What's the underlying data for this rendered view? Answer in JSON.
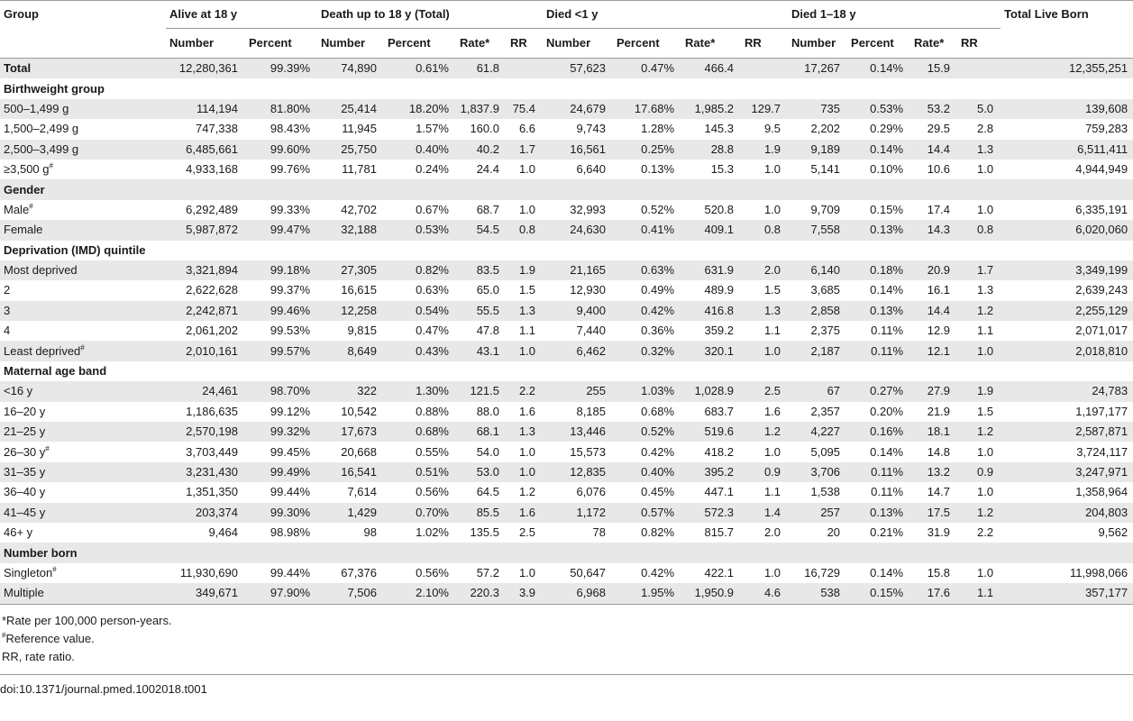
{
  "header": {
    "group": "Group",
    "alive": "Alive at 18 y",
    "death_total": "Death up to 18 y (Total)",
    "died_lt1": "Died <1 y",
    "died_1_18": "Died 1–18 y",
    "total_live_born": "Total Live Born",
    "number": "Number",
    "percent": "Percent",
    "rate": "Rate*",
    "rr": "RR"
  },
  "rows": [
    {
      "type": "data",
      "shade": true,
      "label": "Total",
      "ref": false,
      "cells": [
        "12,280,361",
        "99.39%",
        "74,890",
        "0.61%",
        "61.8",
        "",
        "57,623",
        "0.47%",
        "466.4",
        "",
        "17,267",
        "0.14%",
        "15.9",
        "",
        "12,355,251"
      ]
    },
    {
      "type": "section",
      "shade": false,
      "label": "Birthweight group"
    },
    {
      "type": "data",
      "shade": true,
      "label": "500–1,499 g",
      "ref": false,
      "cells": [
        "114,194",
        "81.80%",
        "25,414",
        "18.20%",
        "1,837.9",
        "75.4",
        "24,679",
        "17.68%",
        "1,985.2",
        "129.7",
        "735",
        "0.53%",
        "53.2",
        "5.0",
        "139,608"
      ]
    },
    {
      "type": "data",
      "shade": false,
      "label": "1,500–2,499 g",
      "ref": false,
      "cells": [
        "747,338",
        "98.43%",
        "11,945",
        "1.57%",
        "160.0",
        "6.6",
        "9,743",
        "1.28%",
        "145.3",
        "9.5",
        "2,202",
        "0.29%",
        "29.5",
        "2.8",
        "759,283"
      ]
    },
    {
      "type": "data",
      "shade": true,
      "label": "2,500–3,499 g",
      "ref": false,
      "cells": [
        "6,485,661",
        "99.60%",
        "25,750",
        "0.40%",
        "40.2",
        "1.7",
        "16,561",
        "0.25%",
        "28.8",
        "1.9",
        "9,189",
        "0.14%",
        "14.4",
        "1.3",
        "6,511,411"
      ]
    },
    {
      "type": "data",
      "shade": false,
      "label": "≥3,500 g",
      "ref": true,
      "cells": [
        "4,933,168",
        "99.76%",
        "11,781",
        "0.24%",
        "24.4",
        "1.0",
        "6,640",
        "0.13%",
        "15.3",
        "1.0",
        "5,141",
        "0.10%",
        "10.6",
        "1.0",
        "4,944,949"
      ]
    },
    {
      "type": "section",
      "shade": true,
      "label": "Gender"
    },
    {
      "type": "data",
      "shade": false,
      "label": "Male",
      "ref": true,
      "cells": [
        "6,292,489",
        "99.33%",
        "42,702",
        "0.67%",
        "68.7",
        "1.0",
        "32,993",
        "0.52%",
        "520.8",
        "1.0",
        "9,709",
        "0.15%",
        "17.4",
        "1.0",
        "6,335,191"
      ]
    },
    {
      "type": "data",
      "shade": true,
      "label": "Female",
      "ref": false,
      "cells": [
        "5,987,872",
        "99.47%",
        "32,188",
        "0.53%",
        "54.5",
        "0.8",
        "24,630",
        "0.41%",
        "409.1",
        "0.8",
        "7,558",
        "0.13%",
        "14.3",
        "0.8",
        "6,020,060"
      ]
    },
    {
      "type": "section",
      "shade": false,
      "label": "Deprivation (IMD) quintile"
    },
    {
      "type": "data",
      "shade": true,
      "label": "Most deprived",
      "ref": false,
      "cells": [
        "3,321,894",
        "99.18%",
        "27,305",
        "0.82%",
        "83.5",
        "1.9",
        "21,165",
        "0.63%",
        "631.9",
        "2.0",
        "6,140",
        "0.18%",
        "20.9",
        "1.7",
        "3,349,199"
      ]
    },
    {
      "type": "data",
      "shade": false,
      "label": "2",
      "ref": false,
      "cells": [
        "2,622,628",
        "99.37%",
        "16,615",
        "0.63%",
        "65.0",
        "1.5",
        "12,930",
        "0.49%",
        "489.9",
        "1.5",
        "3,685",
        "0.14%",
        "16.1",
        "1.3",
        "2,639,243"
      ]
    },
    {
      "type": "data",
      "shade": true,
      "label": "3",
      "ref": false,
      "cells": [
        "2,242,871",
        "99.46%",
        "12,258",
        "0.54%",
        "55.5",
        "1.3",
        "9,400",
        "0.42%",
        "416.8",
        "1.3",
        "2,858",
        "0.13%",
        "14.4",
        "1.2",
        "2,255,129"
      ]
    },
    {
      "type": "data",
      "shade": false,
      "label": "4",
      "ref": false,
      "cells": [
        "2,061,202",
        "99.53%",
        "9,815",
        "0.47%",
        "47.8",
        "1.1",
        "7,440",
        "0.36%",
        "359.2",
        "1.1",
        "2,375",
        "0.11%",
        "12.9",
        "1.1",
        "2,071,017"
      ]
    },
    {
      "type": "data",
      "shade": true,
      "label": "Least deprived",
      "ref": true,
      "cells": [
        "2,010,161",
        "99.57%",
        "8,649",
        "0.43%",
        "43.1",
        "1.0",
        "6,462",
        "0.32%",
        "320.1",
        "1.0",
        "2,187",
        "0.11%",
        "12.1",
        "1.0",
        "2,018,810"
      ]
    },
    {
      "type": "section",
      "shade": false,
      "label": "Maternal age band"
    },
    {
      "type": "data",
      "shade": true,
      "label": "<16 y",
      "ref": false,
      "cells": [
        "24,461",
        "98.70%",
        "322",
        "1.30%",
        "121.5",
        "2.2",
        "255",
        "1.03%",
        "1,028.9",
        "2.5",
        "67",
        "0.27%",
        "27.9",
        "1.9",
        "24,783"
      ]
    },
    {
      "type": "data",
      "shade": false,
      "label": "16–20 y",
      "ref": false,
      "cells": [
        "1,186,635",
        "99.12%",
        "10,542",
        "0.88%",
        "88.0",
        "1.6",
        "8,185",
        "0.68%",
        "683.7",
        "1.6",
        "2,357",
        "0.20%",
        "21.9",
        "1.5",
        "1,197,177"
      ]
    },
    {
      "type": "data",
      "shade": true,
      "label": "21–25 y",
      "ref": false,
      "cells": [
        "2,570,198",
        "99.32%",
        "17,673",
        "0.68%",
        "68.1",
        "1.3",
        "13,446",
        "0.52%",
        "519.6",
        "1.2",
        "4,227",
        "0.16%",
        "18.1",
        "1.2",
        "2,587,871"
      ]
    },
    {
      "type": "data",
      "shade": false,
      "label": "26–30 y",
      "ref": true,
      "cells": [
        "3,703,449",
        "99.45%",
        "20,668",
        "0.55%",
        "54.0",
        "1.0",
        "15,573",
        "0.42%",
        "418.2",
        "1.0",
        "5,095",
        "0.14%",
        "14.8",
        "1.0",
        "3,724,117"
      ]
    },
    {
      "type": "data",
      "shade": true,
      "label": "31–35 y",
      "ref": false,
      "cells": [
        "3,231,430",
        "99.49%",
        "16,541",
        "0.51%",
        "53.0",
        "1.0",
        "12,835",
        "0.40%",
        "395.2",
        "0.9",
        "3,706",
        "0.11%",
        "13.2",
        "0.9",
        "3,247,971"
      ]
    },
    {
      "type": "data",
      "shade": false,
      "label": "36–40 y",
      "ref": false,
      "cells": [
        "1,351,350",
        "99.44%",
        "7,614",
        "0.56%",
        "64.5",
        "1.2",
        "6,076",
        "0.45%",
        "447.1",
        "1.1",
        "1,538",
        "0.11%",
        "14.7",
        "1.0",
        "1,358,964"
      ]
    },
    {
      "type": "data",
      "shade": true,
      "label": "41–45 y",
      "ref": false,
      "cells": [
        "203,374",
        "99.30%",
        "1,429",
        "0.70%",
        "85.5",
        "1.6",
        "1,172",
        "0.57%",
        "572.3",
        "1.4",
        "257",
        "0.13%",
        "17.5",
        "1.2",
        "204,803"
      ]
    },
    {
      "type": "data",
      "shade": false,
      "label": "46+ y",
      "ref": false,
      "cells": [
        "9,464",
        "98.98%",
        "98",
        "1.02%",
        "135.5",
        "2.5",
        "78",
        "0.82%",
        "815.7",
        "2.0",
        "20",
        "0.21%",
        "31.9",
        "2.2",
        "9,562"
      ]
    },
    {
      "type": "section",
      "shade": true,
      "label": "Number born"
    },
    {
      "type": "data",
      "shade": false,
      "label": "Singleton",
      "ref": true,
      "cells": [
        "11,930,690",
        "99.44%",
        "67,376",
        "0.56%",
        "57.2",
        "1.0",
        "50,647",
        "0.42%",
        "422.1",
        "1.0",
        "16,729",
        "0.14%",
        "15.8",
        "1.0",
        "11,998,066"
      ]
    },
    {
      "type": "data",
      "shade": true,
      "label": "Multiple",
      "ref": false,
      "cells": [
        "349,671",
        "97.90%",
        "7,506",
        "2.10%",
        "220.3",
        "3.9",
        "6,968",
        "1.95%",
        "1,950.9",
        "4.6",
        "538",
        "0.15%",
        "17.6",
        "1.1",
        "357,177"
      ]
    }
  ],
  "ref_mark": "#",
  "notes": {
    "rate_note": "*Rate per 100,000 person-years.",
    "ref_note": "Reference value.",
    "rr_note": "RR, rate ratio."
  },
  "doi": "doi:10.1371/journal.pmed.1002018.t001"
}
